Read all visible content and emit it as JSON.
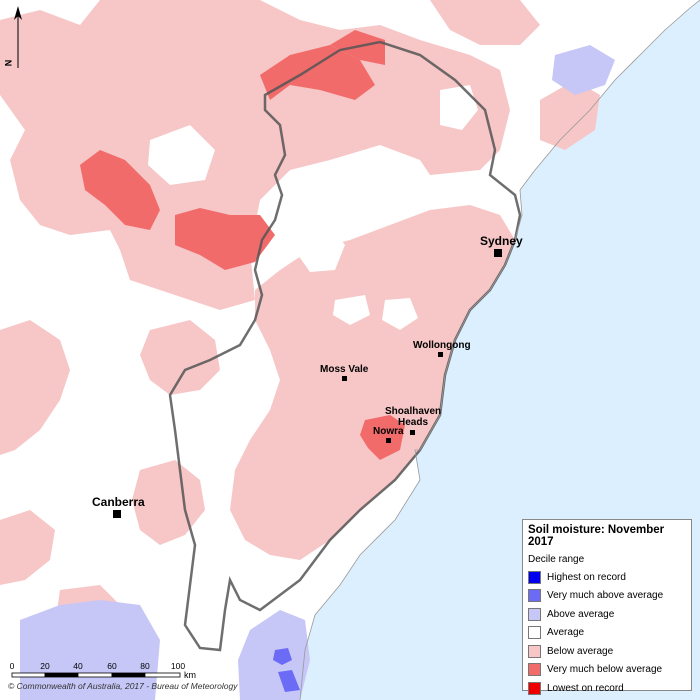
{
  "legend": {
    "title": "Soil moisture: November 2017",
    "subtitle": "Decile range",
    "items": [
      {
        "label": "Highest on record",
        "color": "#0000ee"
      },
      {
        "label": "Very much above average",
        "color": "#6b6bf5"
      },
      {
        "label": "Above average",
        "color": "#c6c6f7"
      },
      {
        "label": "Average",
        "color": "#ffffff"
      },
      {
        "label": "Below average",
        "color": "#f7c6c6"
      },
      {
        "label": "Very much below average",
        "color": "#f26b6b"
      },
      {
        "label": "Lowest on record",
        "color": "#ee0000"
      }
    ]
  },
  "places": {
    "sydney": "Sydney",
    "wollongong": "Wollongong",
    "moss_vale": "Moss Vale",
    "shoalhaven_1": "Shoalhaven",
    "shoalhaven_2": "Heads",
    "nowra": "Nowra",
    "canberra": "Canberra"
  },
  "scale": {
    "ticks": [
      "0",
      "20",
      "40",
      "60",
      "80",
      "100"
    ],
    "unit": "km"
  },
  "north_letter": "N",
  "copyright": "© Commonwealth of Australia, 2017 - Bureau of Meteorology",
  "colors": {
    "ocean": "#dcefff",
    "below_average": "#f7c6c6",
    "very_much_below": "#f26b6b",
    "above_average": "#c6c6f7",
    "very_much_above": "#6b6bf5",
    "average": "#ffffff"
  }
}
